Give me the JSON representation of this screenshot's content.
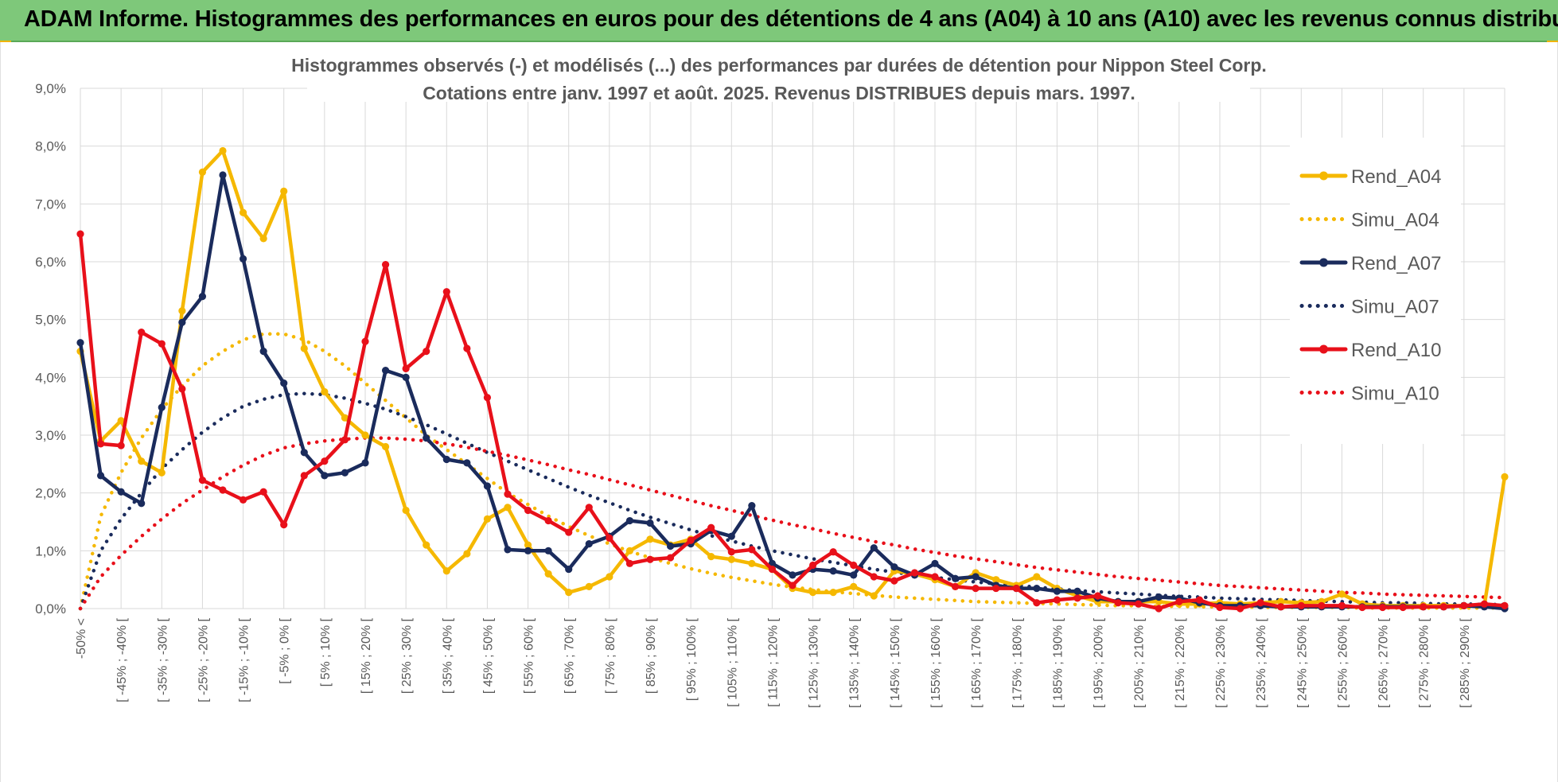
{
  "banner": {
    "title": "ADAM Informe. Histogrammes des performances en euros pour des détentions de 4 ans (A04) à 10 ans (A10) avec les revenus connus distribués"
  },
  "colors": {
    "banner_bg": "#7ec87a",
    "A04": "#f5b800",
    "A07": "#1a2b5c",
    "A10": "#e8101a"
  },
  "chart_data": {
    "type": "line",
    "title_lines": [
      "Histogrammes observés (-) et modélisés (...) des performances par durées de détention pour Nippon Steel Corp.",
      "Cotations entre janv. 1997 et août. 2025. Revenus DISTRIBUES depuis mars. 1997."
    ],
    "ylim": [
      0,
      9
    ],
    "yunit": "%",
    "yticks": [
      "0,0%",
      "1,0%",
      "2,0%",
      "3,0%",
      "4,0%",
      "5,0%",
      "6,0%",
      "7,0%",
      "8,0%",
      "9,0%"
    ],
    "grid": true,
    "legend_position": "top-right",
    "x_tick_labels": [
      "-50% <",
      "[ -45% ; -40% [",
      "[ -35% ; -30% [",
      "[ -25% ; -20% [",
      "[ -15% ; -10% [",
      "[ -5% ; 0% [",
      "[ 5% ; 10% [",
      "[ 15% ; 20% [",
      "[ 25% ; 30% [",
      "[ 35% ; 40% [",
      "[ 45% ; 50% [",
      "[ 55% ; 60% [",
      "[ 65% ; 70% [",
      "[ 75% ; 80% [",
      "[ 85% ; 90% [",
      "[ 95% ; 100% [",
      "[ 105% ; 110% [",
      "[ 115% ; 120% [",
      "[ 125% ; 130% [",
      "[ 135% ; 140% [",
      "[ 145% ; 150% [",
      "[ 155% ; 160% [",
      "[ 165% ; 170% [",
      "[ 175% ; 180% [",
      "[ 185% ; 190% [",
      "[ 195% ; 200% [",
      "[ 205% ; 210% [",
      "[ 215% ; 220% [",
      "[ 225% ; 230% [",
      "[ 235% ; 240% [",
      "[ 245% ; 250% [",
      "[ 255% ; 260% [",
      "[ 265% ; 270% [",
      "[ 275% ; 280% [",
      "[ 285% ; 290% ["
    ],
    "series": [
      {
        "name": "Rend_A04",
        "style": "solid",
        "color": "#f5b800",
        "values": [
          4.45,
          2.9,
          3.25,
          2.55,
          2.35,
          5.15,
          7.55,
          7.92,
          6.85,
          6.4,
          7.22,
          4.5,
          3.75,
          3.3,
          3.0,
          2.8,
          1.7,
          1.1,
          0.65,
          0.95,
          1.55,
          1.75,
          1.1,
          0.6,
          0.28,
          0.38,
          0.55,
          1.0,
          1.2,
          1.1,
          1.2,
          0.9,
          0.85,
          0.78,
          0.68,
          0.35,
          0.28,
          0.28,
          0.38,
          0.22,
          0.65,
          0.6,
          0.5,
          0.38,
          0.62,
          0.5,
          0.4,
          0.55,
          0.35,
          0.22,
          0.12,
          0.12,
          0.12,
          0.12,
          0.08,
          0.08,
          0.1,
          0.08,
          0.1,
          0.12,
          0.1,
          0.12,
          0.25,
          0.08,
          0.05,
          0.05,
          0.05,
          0.05,
          0.05,
          0.05,
          2.28
        ]
      },
      {
        "name": "Simu_A04",
        "style": "dotted",
        "color": "#f5b800",
        "values": [
          0.0,
          1.6,
          2.35,
          2.95,
          3.45,
          3.85,
          4.2,
          4.45,
          4.65,
          4.75,
          4.75,
          4.65,
          4.45,
          4.2,
          3.9,
          3.6,
          3.3,
          3.0,
          2.75,
          2.5,
          2.25,
          2.0,
          1.8,
          1.6,
          1.42,
          1.26,
          1.12,
          0.99,
          0.88,
          0.78,
          0.69,
          0.61,
          0.54,
          0.48,
          0.42,
          0.37,
          0.33,
          0.29,
          0.26,
          0.23,
          0.2,
          0.18,
          0.16,
          0.14,
          0.12,
          0.11,
          0.1,
          0.09,
          0.08,
          0.07,
          0.06,
          0.05,
          0.05,
          0.04,
          0.04,
          0.03,
          0.03,
          0.03,
          0.02,
          0.02,
          0.02,
          0.02,
          0.02,
          0.01,
          0.01,
          0.01,
          0.01,
          0.01,
          0.01,
          0.01,
          0.01
        ]
      },
      {
        "name": "Rend_A07",
        "style": "solid",
        "color": "#1a2b5c",
        "values": [
          4.6,
          2.3,
          2.02,
          1.82,
          3.48,
          4.95,
          5.4,
          7.5,
          6.05,
          4.45,
          3.9,
          2.7,
          2.3,
          2.35,
          2.52,
          4.12,
          4.0,
          2.95,
          2.58,
          2.52,
          2.12,
          1.02,
          1.0,
          1.0,
          0.68,
          1.12,
          1.25,
          1.52,
          1.48,
          1.08,
          1.12,
          1.35,
          1.25,
          1.78,
          0.78,
          0.58,
          0.68,
          0.65,
          0.58,
          1.05,
          0.72,
          0.58,
          0.78,
          0.52,
          0.55,
          0.4,
          0.35,
          0.35,
          0.3,
          0.3,
          0.18,
          0.12,
          0.12,
          0.2,
          0.18,
          0.1,
          0.05,
          0.05,
          0.05,
          0.03,
          0.03,
          0.03,
          0.03,
          0.03,
          0.03,
          0.03,
          0.03,
          0.03,
          0.05,
          0.03,
          0.0
        ]
      },
      {
        "name": "Simu_A07",
        "style": "dotted",
        "color": "#1a2b5c",
        "values": [
          0.0,
          1.0,
          1.55,
          2.0,
          2.42,
          2.75,
          3.05,
          3.3,
          3.5,
          3.62,
          3.7,
          3.72,
          3.7,
          3.64,
          3.55,
          3.45,
          3.32,
          3.18,
          3.02,
          2.86,
          2.7,
          2.55,
          2.4,
          2.25,
          2.1,
          1.96,
          1.83,
          1.7,
          1.58,
          1.47,
          1.36,
          1.26,
          1.17,
          1.08,
          1.0,
          0.93,
          0.86,
          0.8,
          0.74,
          0.68,
          0.63,
          0.58,
          0.54,
          0.5,
          0.46,
          0.43,
          0.4,
          0.37,
          0.34,
          0.31,
          0.29,
          0.27,
          0.25,
          0.23,
          0.21,
          0.2,
          0.18,
          0.17,
          0.16,
          0.15,
          0.14,
          0.13,
          0.12,
          0.11,
          0.1,
          0.1,
          0.09,
          0.08,
          0.08,
          0.07,
          0.07
        ]
      },
      {
        "name": "Rend_A10",
        "style": "solid",
        "color": "#e8101a",
        "values": [
          6.48,
          2.85,
          2.82,
          4.78,
          4.58,
          3.8,
          2.22,
          2.05,
          1.88,
          2.02,
          1.45,
          2.3,
          2.55,
          2.92,
          4.62,
          5.95,
          4.15,
          4.45,
          5.48,
          4.5,
          3.65,
          1.98,
          1.7,
          1.52,
          1.32,
          1.75,
          1.22,
          0.78,
          0.85,
          0.88,
          1.18,
          1.4,
          0.98,
          1.02,
          0.68,
          0.4,
          0.75,
          0.98,
          0.75,
          0.55,
          0.48,
          0.62,
          0.55,
          0.38,
          0.35,
          0.35,
          0.35,
          0.1,
          0.15,
          0.18,
          0.22,
          0.1,
          0.08,
          0.0,
          0.12,
          0.15,
          0.02,
          0.0,
          0.1,
          0.03,
          0.05,
          0.05,
          0.05,
          0.02,
          0.02,
          0.02,
          0.03,
          0.03,
          0.05,
          0.08,
          0.05
        ]
      },
      {
        "name": "Simu_A10",
        "style": "dotted",
        "color": "#e8101a",
        "values": [
          0.0,
          0.55,
          0.92,
          1.25,
          1.55,
          1.82,
          2.05,
          2.28,
          2.48,
          2.65,
          2.78,
          2.85,
          2.9,
          2.93,
          2.95,
          2.95,
          2.93,
          2.9,
          2.85,
          2.79,
          2.72,
          2.65,
          2.57,
          2.49,
          2.4,
          2.32,
          2.23,
          2.14,
          2.05,
          1.96,
          1.87,
          1.78,
          1.7,
          1.61,
          1.53,
          1.45,
          1.38,
          1.3,
          1.23,
          1.16,
          1.1,
          1.03,
          0.97,
          0.91,
          0.86,
          0.81,
          0.76,
          0.71,
          0.67,
          0.63,
          0.59,
          0.55,
          0.52,
          0.49,
          0.46,
          0.43,
          0.4,
          0.38,
          0.36,
          0.34,
          0.32,
          0.3,
          0.28,
          0.27,
          0.25,
          0.24,
          0.23,
          0.22,
          0.21,
          0.2,
          0.19
        ]
      }
    ]
  }
}
